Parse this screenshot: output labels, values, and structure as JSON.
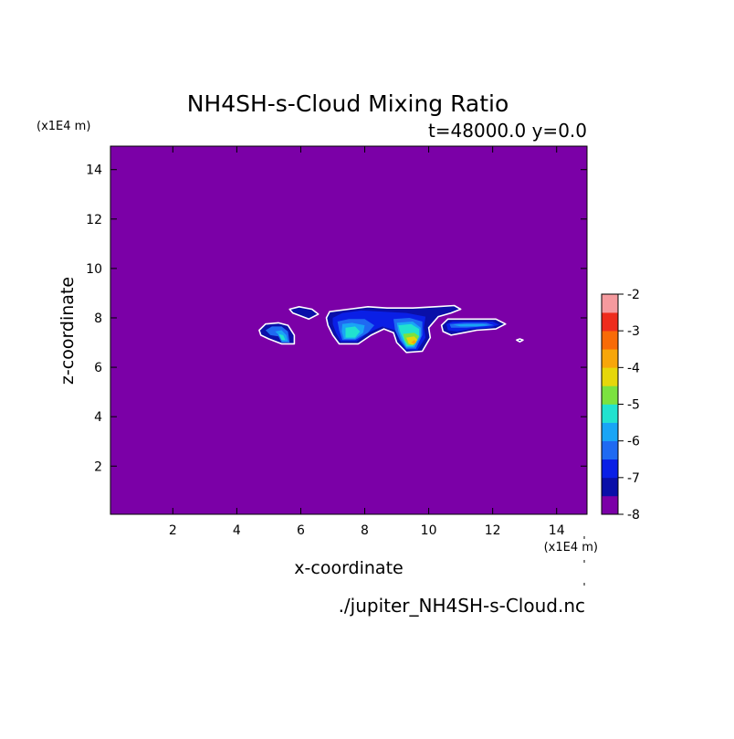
{
  "chart_data": {
    "type": "heatmap",
    "title": "NH4SH-s-Cloud Mixing Ratio",
    "subtitle": "t=48000.0 y=0.0",
    "y_unit_label": "(x1E4 m)",
    "x_unit_label": "(x1E4 m)",
    "xlabel": "x-coordinate",
    "ylabel": "z-coordinate",
    "file_label": "./jupiter_NH4SH-s-Cloud.nc",
    "xlim": [
      0.05,
      14.95
    ],
    "ylim": [
      0.05,
      14.95
    ],
    "x_ticks": [
      2,
      4,
      6,
      8,
      10,
      12,
      14
    ],
    "y_ticks": [
      2,
      4,
      6,
      8,
      10,
      12,
      14
    ],
    "background_level": -8,
    "colorbar": {
      "levels": [
        -8,
        -7.5,
        -7,
        -6.5,
        -6,
        -5.5,
        -5,
        -4.5,
        -4,
        -3.5,
        -3,
        -2.5,
        -2
      ],
      "tick_labels": [
        "-8",
        "-7",
        "-6",
        "-5",
        "-4",
        "-3",
        "-2"
      ],
      "colors": [
        "#7b00a7",
        "#0a0fa8",
        "#0a1fe6",
        "#1f6af2",
        "#19a5f5",
        "#21e2cf",
        "#7be23f",
        "#e6d70a",
        "#f7a60a",
        "#f86b08",
        "#ee2c1d",
        "#f59a9e"
      ]
    },
    "cloud_regions": [
      {
        "name": "left-blob",
        "shapes": [
          {
            "level": -7.5,
            "points": [
              [
                4.7,
                7.5
              ],
              [
                4.9,
                7.75
              ],
              [
                5.3,
                7.8
              ],
              [
                5.6,
                7.7
              ],
              [
                5.8,
                7.3
              ],
              [
                5.8,
                6.95
              ],
              [
                5.4,
                6.95
              ],
              [
                5.0,
                7.15
              ],
              [
                4.75,
                7.3
              ]
            ]
          },
          {
            "level": -6.5,
            "points": [
              [
                4.9,
                7.5
              ],
              [
                5.1,
                7.65
              ],
              [
                5.4,
                7.65
              ],
              [
                5.6,
                7.45
              ],
              [
                5.65,
                7.0
              ],
              [
                5.4,
                7.0
              ],
              [
                5.3,
                7.25
              ],
              [
                5.05,
                7.3
              ]
            ]
          },
          {
            "level": -6.0,
            "points": [
              [
                5.2,
                7.45
              ],
              [
                5.4,
                7.5
              ],
              [
                5.55,
                7.3
              ],
              [
                5.6,
                7.05
              ],
              [
                5.42,
                7.05
              ],
              [
                5.32,
                7.3
              ]
            ]
          },
          {
            "level": -5.5,
            "points": [
              [
                5.3,
                7.35
              ],
              [
                5.45,
                7.3
              ],
              [
                5.52,
                7.1
              ],
              [
                5.4,
                7.1
              ]
            ]
          }
        ]
      },
      {
        "name": "small-top-blob",
        "shapes": [
          {
            "level": -7.5,
            "points": [
              [
                5.65,
                8.35
              ],
              [
                5.95,
                8.45
              ],
              [
                6.35,
                8.35
              ],
              [
                6.55,
                8.15
              ],
              [
                6.25,
                7.95
              ],
              [
                5.95,
                8.1
              ],
              [
                5.75,
                8.2
              ]
            ]
          }
        ]
      },
      {
        "name": "center-complex",
        "shapes": [
          {
            "level": -7.5,
            "points": [
              [
                6.8,
                8.0
              ],
              [
                6.9,
                8.25
              ],
              [
                7.5,
                8.35
              ],
              [
                8.1,
                8.45
              ],
              [
                8.7,
                8.4
              ],
              [
                9.5,
                8.4
              ],
              [
                10.2,
                8.45
              ],
              [
                10.8,
                8.5
              ],
              [
                11.0,
                8.35
              ],
              [
                10.7,
                8.2
              ],
              [
                10.3,
                8.05
              ],
              [
                10.0,
                7.6
              ],
              [
                10.05,
                7.2
              ],
              [
                9.8,
                6.65
              ],
              [
                9.3,
                6.6
              ],
              [
                9.0,
                7.0
              ],
              [
                8.9,
                7.4
              ],
              [
                8.6,
                7.55
              ],
              [
                8.2,
                7.3
              ],
              [
                7.8,
                6.95
              ],
              [
                7.2,
                6.95
              ],
              [
                7.0,
                7.3
              ],
              [
                6.85,
                7.7
              ]
            ]
          },
          {
            "level": -7.0,
            "points": [
              [
                7.0,
                8.0
              ],
              [
                7.3,
                8.2
              ],
              [
                7.9,
                8.3
              ],
              [
                8.6,
                8.25
              ],
              [
                9.3,
                8.2
              ],
              [
                9.9,
                8.05
              ],
              [
                9.85,
                7.6
              ],
              [
                9.9,
                7.2
              ],
              [
                9.65,
                6.7
              ],
              [
                9.3,
                6.7
              ],
              [
                9.1,
                7.05
              ],
              [
                8.95,
                7.5
              ],
              [
                8.55,
                7.65
              ],
              [
                8.1,
                7.4
              ],
              [
                7.75,
                7.05
              ],
              [
                7.25,
                7.05
              ],
              [
                7.1,
                7.4
              ],
              [
                7.0,
                7.75
              ]
            ]
          },
          {
            "level": -6.5,
            "points": [
              [
                7.15,
                7.85
              ],
              [
                7.5,
                7.95
              ],
              [
                8.0,
                7.95
              ],
              [
                8.3,
                7.7
              ],
              [
                8.1,
                7.4
              ],
              [
                7.7,
                7.1
              ],
              [
                7.3,
                7.1
              ],
              [
                7.2,
                7.5
              ]
            ]
          },
          {
            "level": -6.5,
            "points": [
              [
                8.9,
                7.95
              ],
              [
                9.4,
                8.0
              ],
              [
                9.8,
                7.85
              ],
              [
                9.8,
                7.3
              ],
              [
                9.6,
                6.75
              ],
              [
                9.3,
                6.75
              ],
              [
                9.1,
                7.1
              ],
              [
                8.95,
                7.5
              ]
            ]
          },
          {
            "level": -6.0,
            "points": [
              [
                7.3,
                7.75
              ],
              [
                7.6,
                7.8
              ],
              [
                8.0,
                7.7
              ],
              [
                7.95,
                7.4
              ],
              [
                7.7,
                7.15
              ],
              [
                7.35,
                7.15
              ],
              [
                7.28,
                7.45
              ]
            ]
          },
          {
            "level": -6.0,
            "points": [
              [
                9.0,
                7.8
              ],
              [
                9.5,
                7.85
              ],
              [
                9.75,
                7.6
              ],
              [
                9.75,
                7.25
              ],
              [
                9.55,
                6.8
              ],
              [
                9.3,
                6.8
              ],
              [
                9.15,
                7.1
              ],
              [
                9.05,
                7.45
              ]
            ]
          },
          {
            "level": -5.5,
            "points": [
              [
                7.4,
                7.6
              ],
              [
                7.7,
                7.65
              ],
              [
                7.85,
                7.45
              ],
              [
                7.7,
                7.2
              ],
              [
                7.4,
                7.2
              ]
            ]
          },
          {
            "level": -5.5,
            "points": [
              [
                9.05,
                7.7
              ],
              [
                9.45,
                7.75
              ],
              [
                9.7,
                7.55
              ],
              [
                9.7,
                7.25
              ],
              [
                9.5,
                6.85
              ],
              [
                9.3,
                6.85
              ],
              [
                9.2,
                7.15
              ],
              [
                9.1,
                7.45
              ]
            ]
          },
          {
            "level": -5.0,
            "points": [
              [
                9.2,
                7.35
              ],
              [
                9.55,
                7.4
              ],
              [
                9.7,
                7.25
              ],
              [
                9.55,
                6.9
              ],
              [
                9.35,
                6.9
              ],
              [
                9.25,
                7.1
              ]
            ]
          },
          {
            "level": -4.5,
            "points": [
              [
                9.3,
                7.2
              ],
              [
                9.55,
                7.25
              ],
              [
                9.65,
                7.1
              ],
              [
                9.5,
                6.92
              ],
              [
                9.38,
                6.95
              ]
            ]
          },
          {
            "level": -4.0,
            "points": [
              [
                9.45,
                7.0
              ],
              [
                9.55,
                7.1
              ],
              [
                9.62,
                7.02
              ],
              [
                9.55,
                6.95
              ]
            ]
          }
        ]
      },
      {
        "name": "right-blob",
        "shapes": [
          {
            "level": -7.5,
            "points": [
              [
                10.4,
                7.7
              ],
              [
                10.6,
                7.95
              ],
              [
                11.2,
                7.95
              ],
              [
                12.1,
                7.95
              ],
              [
                12.4,
                7.75
              ],
              [
                12.1,
                7.55
              ],
              [
                11.5,
                7.5
              ],
              [
                11.1,
                7.4
              ],
              [
                10.7,
                7.3
              ],
              [
                10.45,
                7.45
              ]
            ]
          },
          {
            "level": -7.0,
            "points": [
              [
                10.55,
                7.75
              ],
              [
                10.75,
                7.85
              ],
              [
                11.3,
                7.85
              ],
              [
                12.0,
                7.85
              ],
              [
                12.2,
                7.72
              ],
              [
                11.9,
                7.6
              ],
              [
                11.3,
                7.55
              ],
              [
                10.9,
                7.45
              ],
              [
                10.6,
                7.5
              ]
            ]
          },
          {
            "level": -6.5,
            "points": [
              [
                10.65,
                7.75
              ],
              [
                11.1,
                7.8
              ],
              [
                11.8,
                7.8
              ],
              [
                12.05,
                7.7
              ],
              [
                11.7,
                7.65
              ],
              [
                11.2,
                7.6
              ],
              [
                10.7,
                7.6
              ]
            ]
          },
          {
            "level": -6.0,
            "points": [
              [
                10.75,
                7.72
              ],
              [
                11.2,
                7.75
              ],
              [
                11.7,
                7.75
              ],
              [
                11.9,
                7.7
              ],
              [
                11.5,
                7.66
              ],
              [
                11.0,
                7.65
              ]
            ]
          }
        ]
      },
      {
        "name": "tiny-right-dot",
        "shapes": [
          {
            "level": -7.5,
            "points": [
              [
                12.75,
                7.1
              ],
              [
                12.85,
                7.15
              ],
              [
                12.95,
                7.1
              ],
              [
                12.85,
                7.03
              ]
            ]
          }
        ]
      }
    ]
  }
}
